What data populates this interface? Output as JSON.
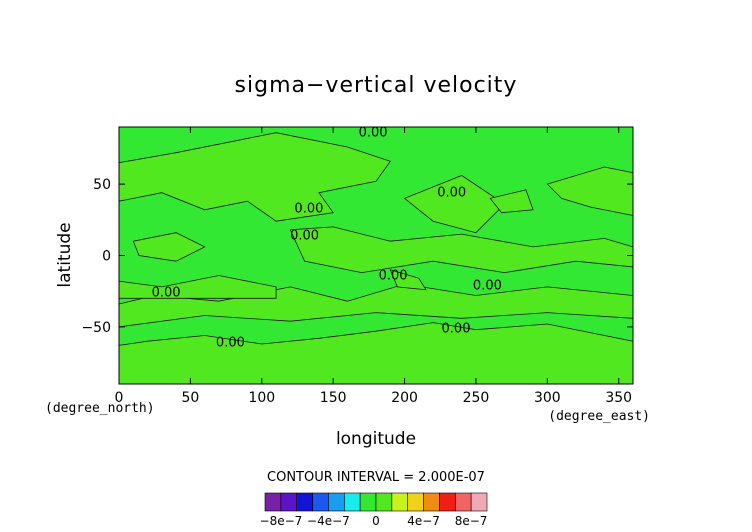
{
  "chart_data": {
    "type": "heatmap",
    "title": "sigma−vertical velocity",
    "xlabel": "longitude",
    "ylabel": "latitude",
    "x_unit": "(degree_east)",
    "y_unit": "(degree_north)",
    "xlim": [
      0,
      360
    ],
    "ylim": [
      -90,
      90
    ],
    "x_ticks": [
      "0",
      "50",
      "100",
      "150",
      "200",
      "250",
      "300",
      "350"
    ],
    "y_ticks": [
      "50",
      "0",
      "−50"
    ],
    "contour_interval_text": "CONTOUR INTERVAL = 2.000E-07",
    "contour_labels": [
      {
        "text": "0.00",
        "lon": 178,
        "lat": 86
      },
      {
        "text": "0.00",
        "lon": 133,
        "lat": 33
      },
      {
        "text": "0.00",
        "lon": 130,
        "lat": 14
      },
      {
        "text": "0.00",
        "lon": 233,
        "lat": 44
      },
      {
        "text": "0.00",
        "lon": 192,
        "lat": -14
      },
      {
        "text": "0.00",
        "lon": 258,
        "lat": -21
      },
      {
        "text": "0.00",
        "lon": 33,
        "lat": -26
      },
      {
        "text": "0.00",
        "lon": 236,
        "lat": -51
      },
      {
        "text": "0.00",
        "lon": 78,
        "lat": -61
      }
    ],
    "colorbar": {
      "colors": [
        "#7a1fa8",
        "#5b14c6",
        "#1414d8",
        "#1a58f0",
        "#1a9cf0",
        "#19ecec",
        "#33e833",
        "#52e81f",
        "#c8f21a",
        "#f0d21a",
        "#f08c14",
        "#f01e14",
        "#f06464",
        "#f0a8b4"
      ],
      "tick_labels": [
        "−8e−7",
        "−4e−7",
        "0",
        "4e−7",
        "8e−7"
      ],
      "tick_values": [
        -8e-07,
        -4e-07,
        0,
        4e-07,
        8e-07
      ]
    },
    "field_fill_colors": {
      "low": "#33e833",
      "high": "#52e81f"
    },
    "grid": false
  }
}
